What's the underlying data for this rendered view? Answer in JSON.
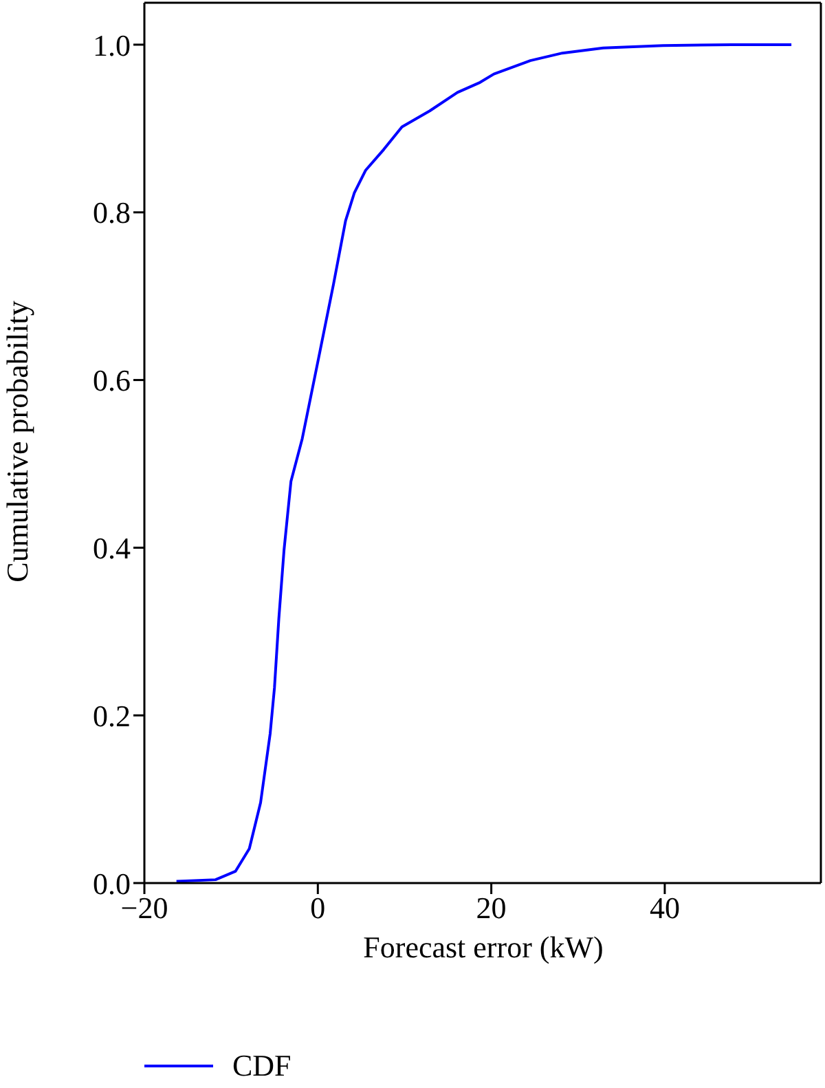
{
  "chart_data": {
    "type": "line",
    "xlabel": "Forecast error (kW)",
    "ylabel": "Cumulative probability",
    "x": [
      -16.3,
      -11.8,
      -9.5,
      -7.9,
      -6.6,
      -5.5,
      -5.0,
      -4.5,
      -3.9,
      -3.1,
      -1.8,
      0.3,
      1.8,
      3.2,
      4.2,
      5.5,
      7.6,
      9.7,
      12.9,
      16.1,
      18.7,
      20.3,
      24.5,
      28.2,
      32.9,
      39.8,
      47.7,
      54.6
    ],
    "series": [
      {
        "name": "CDF",
        "color": "#0000ff",
        "values": [
          0.002,
          0.004,
          0.014,
          0.041,
          0.096,
          0.178,
          0.233,
          0.315,
          0.397,
          0.479,
          0.53,
          0.637,
          0.714,
          0.79,
          0.823,
          0.85,
          0.875,
          0.902,
          0.921,
          0.943,
          0.955,
          0.965,
          0.981,
          0.99,
          0.996,
          0.999,
          1.0,
          1.0
        ]
      }
    ],
    "xlim": [
      -20,
      58
    ],
    "xticks": [
      -20,
      0,
      20,
      40
    ],
    "ylim": [
      0,
      1.05
    ],
    "yticks": [
      {
        "value": 0,
        "label": "0.0"
      },
      {
        "value": 0.2,
        "label": "0.2"
      },
      {
        "value": 0.4,
        "label": "0.4"
      },
      {
        "value": 0.6,
        "label": "0.6"
      },
      {
        "value": 0.8,
        "label": "0.8"
      },
      {
        "value": 1.0,
        "label": "1.0"
      }
    ],
    "grid": false,
    "legend": "bottom",
    "marker": "none",
    "line_style": "solid"
  }
}
